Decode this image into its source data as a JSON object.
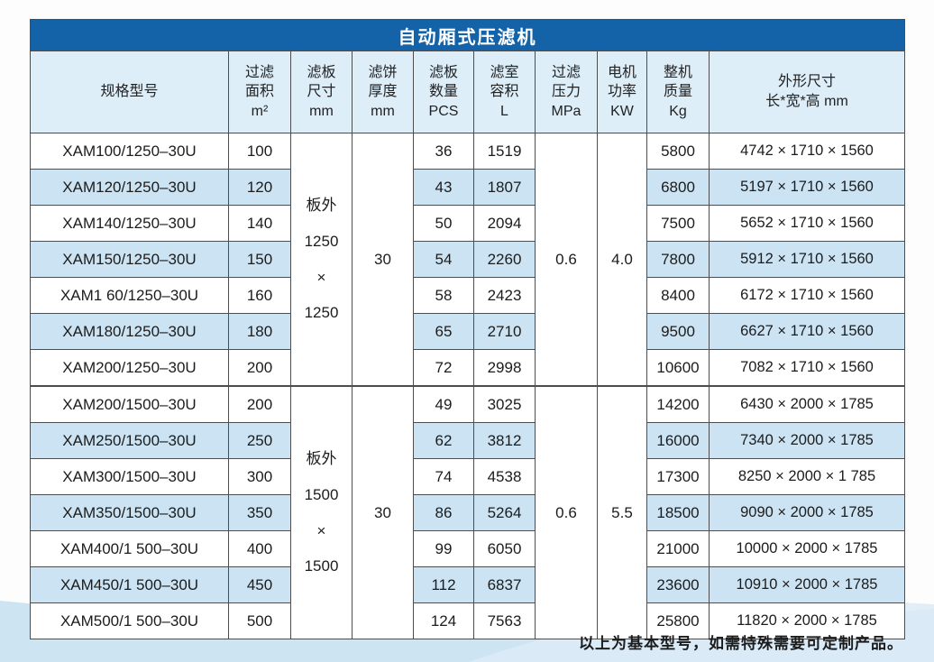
{
  "theme": {
    "title_bar_bg": "#1463a8",
    "title_text_color": "#ffffff",
    "header_bg": "#ddeef9",
    "stripe_row_bg": "#cbe3f3",
    "swoosh_bg": "#cde4f3",
    "border_color": "#4d4d4d"
  },
  "table": {
    "title": "自动厢式压滤机",
    "columns": [
      {
        "id": "model",
        "label": "规格型号"
      },
      {
        "id": "area",
        "label": "过滤\n面积\nm²"
      },
      {
        "id": "plate_size",
        "label": "滤板\n尺寸\nmm"
      },
      {
        "id": "cake_thickness",
        "label": "滤饼\n厚度\nmm"
      },
      {
        "id": "plate_count",
        "label": "滤板\n数量\nPCS"
      },
      {
        "id": "chamber_volume",
        "label": "滤室\n容积\nL"
      },
      {
        "id": "pressure",
        "label": "过滤\n压力\nMPa"
      },
      {
        "id": "motor_power",
        "label": "电机\n功率\nKW"
      },
      {
        "id": "weight",
        "label": "整机\n质量\nKg"
      },
      {
        "id": "dimensions",
        "label": "外形尺寸\n长*宽*高 mm"
      }
    ],
    "groups": [
      {
        "plate_size": "板外\n1250\n×\n1250",
        "cake_thickness": "30",
        "pressure": "0.6",
        "motor_power": "4.0",
        "rows": [
          {
            "model": "XAM100/1250–30U",
            "area": "100",
            "plate_count": "36",
            "chamber_volume": "1519",
            "weight": "5800",
            "dimensions": "4742 × 1710 × 1560"
          },
          {
            "model": "XAM120/1250–30U",
            "area": "120",
            "plate_count": "43",
            "chamber_volume": "1807",
            "weight": "6800",
            "dimensions": "5197 × 1710 × 1560"
          },
          {
            "model": "XAM140/1250–30U",
            "area": "140",
            "plate_count": "50",
            "chamber_volume": "2094",
            "weight": "7500",
            "dimensions": "5652 × 1710 × 1560"
          },
          {
            "model": "XAM150/1250–30U",
            "area": "150",
            "plate_count": "54",
            "chamber_volume": "2260",
            "weight": "7800",
            "dimensions": "5912 × 1710 × 1560"
          },
          {
            "model": "XAM1 60/1250–30U",
            "area": "160",
            "plate_count": "58",
            "chamber_volume": "2423",
            "weight": "8400",
            "dimensions": "6172 × 1710 × 1560"
          },
          {
            "model": "XAM180/1250–30U",
            "area": "180",
            "plate_count": "65",
            "chamber_volume": "2710",
            "weight": "9500",
            "dimensions": "6627 × 1710 × 1560"
          },
          {
            "model": "XAM200/1250–30U",
            "area": "200",
            "plate_count": "72",
            "chamber_volume": "2998",
            "weight": "10600",
            "dimensions": "7082 × 1710 × 1560"
          }
        ]
      },
      {
        "plate_size": "板外\n1500\n×\n1500",
        "cake_thickness": "30",
        "pressure": "0.6",
        "motor_power": "5.5",
        "rows": [
          {
            "model": "XAM200/1500–30U",
            "area": "200",
            "plate_count": "49",
            "chamber_volume": "3025",
            "weight": "14200",
            "dimensions": "6430 × 2000 × 1785"
          },
          {
            "model": "XAM250/1500–30U",
            "area": "250",
            "plate_count": "62",
            "chamber_volume": "3812",
            "weight": "16000",
            "dimensions": "7340 × 2000 × 1785"
          },
          {
            "model": "XAM300/1500–30U",
            "area": "300",
            "plate_count": "74",
            "chamber_volume": "4538",
            "weight": "17300",
            "dimensions": "8250 × 2000 × 1 785"
          },
          {
            "model": "XAM350/1500–30U",
            "area": "350",
            "plate_count": "86",
            "chamber_volume": "5264",
            "weight": "18500",
            "dimensions": "9090 × 2000 × 1785"
          },
          {
            "model": "XAM400/1 500–30U",
            "area": "400",
            "plate_count": "99",
            "chamber_volume": "6050",
            "weight": "21000",
            "dimensions": "10000 × 2000 × 1785"
          },
          {
            "model": "XAM450/1 500–30U",
            "area": "450",
            "plate_count": "112",
            "chamber_volume": "6837",
            "weight": "23600",
            "dimensions": "10910 × 2000 × 1785"
          },
          {
            "model": "XAM500/1 500–30U",
            "area": "500",
            "plate_count": "124",
            "chamber_volume": "7563",
            "weight": "25800",
            "dimensions": "11820 × 2000 × 1785"
          }
        ]
      }
    ]
  },
  "footer": {
    "note": "以上为基本型号，如需特殊需要可定制产品。"
  }
}
